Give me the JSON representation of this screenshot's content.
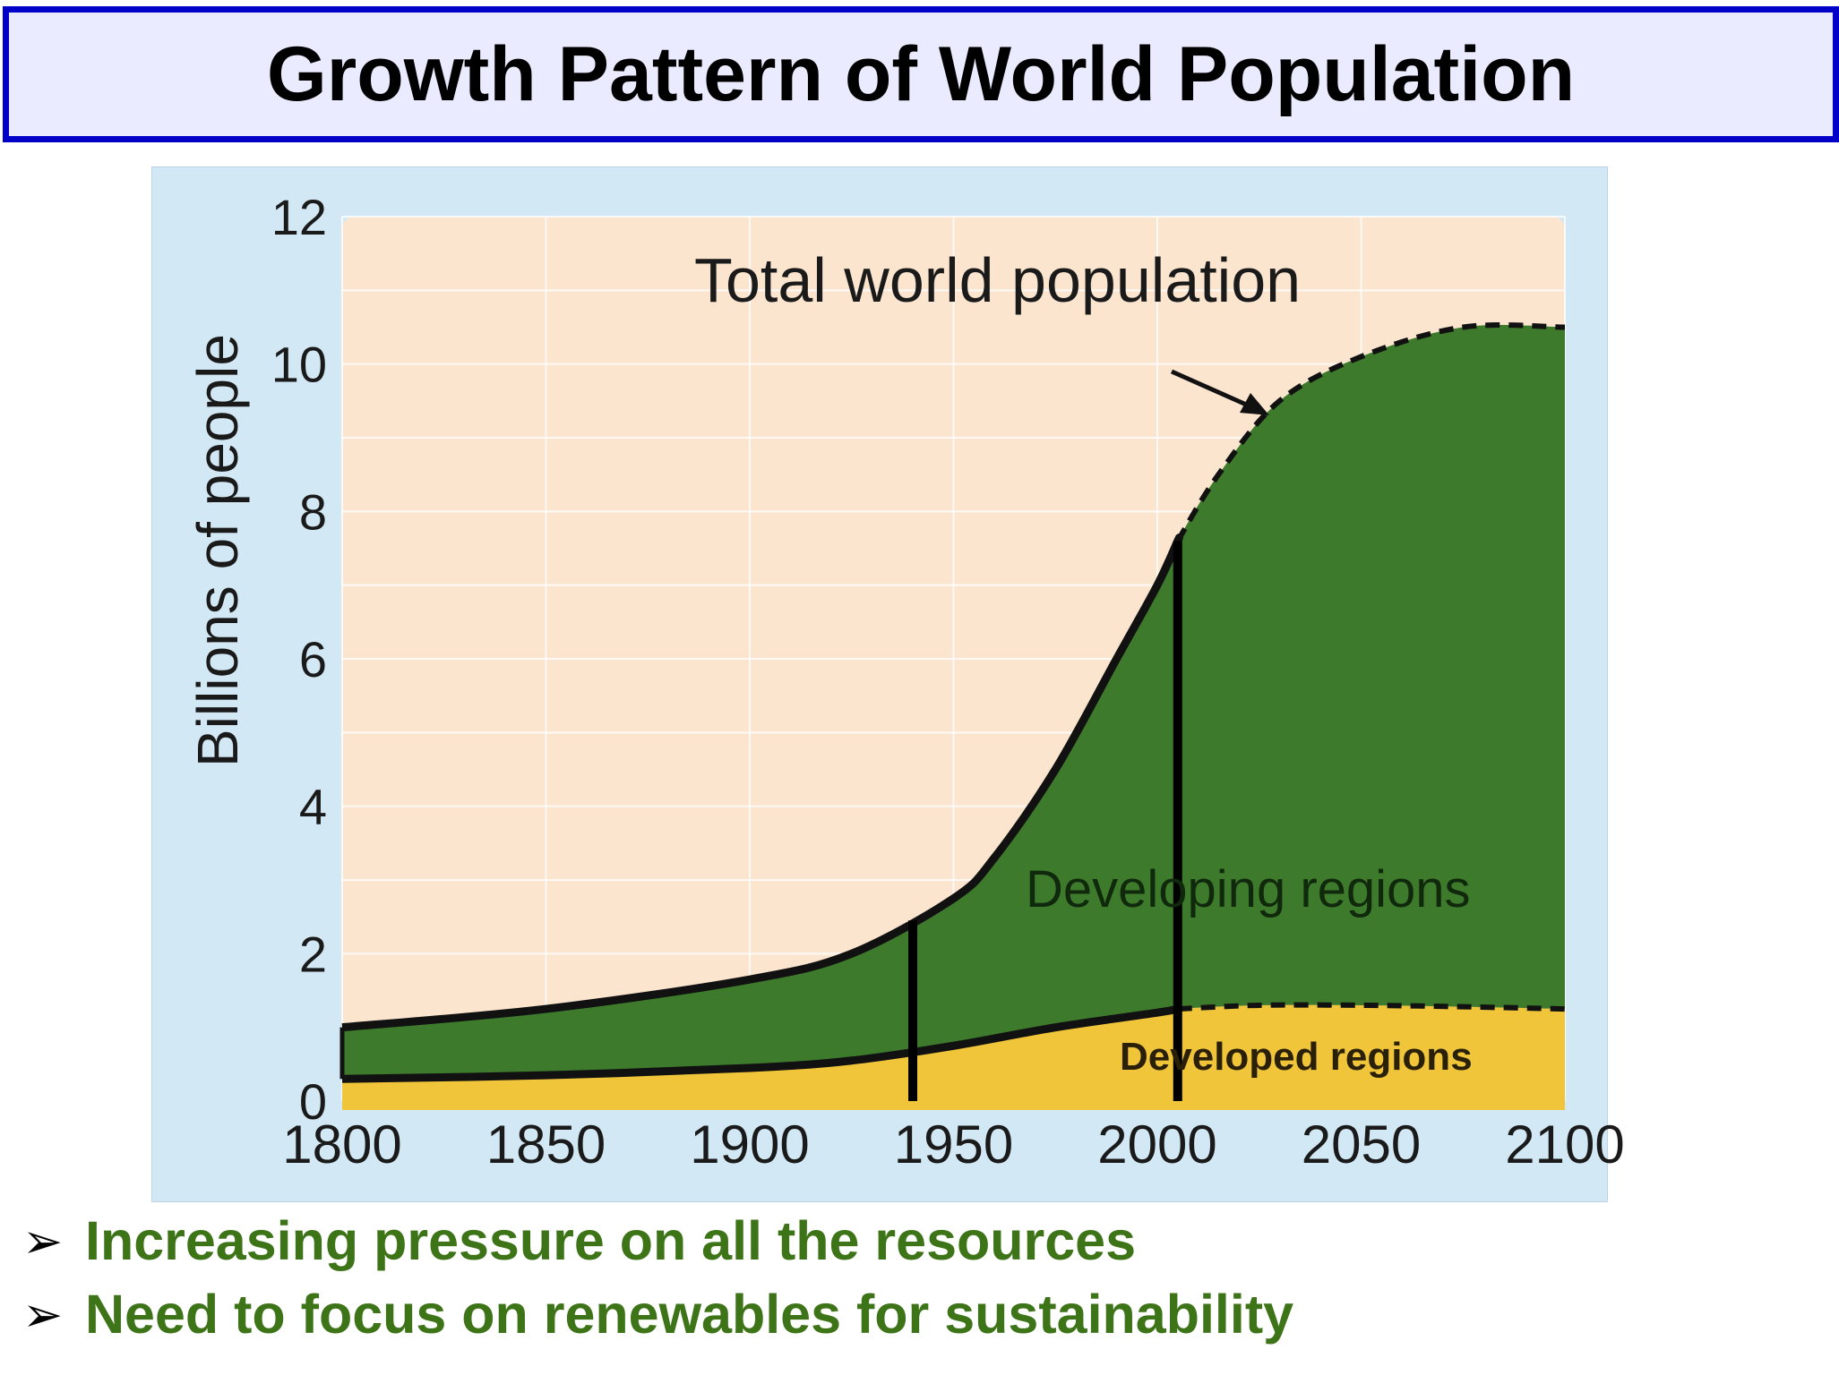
{
  "title": "Growth Pattern of World Population",
  "bullets": [
    "Increasing pressure on all the resources",
    "Need to focus on renewables for sustainability"
  ],
  "bullet_marker": "➢",
  "chart_data": {
    "type": "area",
    "title": "",
    "ylabel": "Billions of people",
    "xlabel": "",
    "xlim": [
      1800,
      2100
    ],
    "ylim": [
      0,
      12
    ],
    "x_ticks": [
      1800,
      1850,
      1900,
      1950,
      2000,
      2050,
      2100
    ],
    "y_ticks": [
      0,
      2,
      4,
      6,
      8,
      10,
      12
    ],
    "grid": true,
    "annotations": {
      "total": "Total world population",
      "developing": "Developing regions",
      "developed": "Developed regions"
    },
    "markers_x": [
      1940,
      2005
    ],
    "projection_start": 2005,
    "colors": {
      "developing": "#3e7a2c",
      "developed": "#f0c53a",
      "plot_background": "#fbe5cf",
      "panel_background": "#d2e8f4",
      "outline": "#111111"
    },
    "series": [
      {
        "name": "Developed regions",
        "x": [
          1800,
          1850,
          1900,
          1925,
          1950,
          1975,
          2000,
          2005,
          2025,
          2050,
          2075,
          2100
        ],
        "values": [
          0.3,
          0.35,
          0.45,
          0.55,
          0.75,
          1.0,
          1.2,
          1.25,
          1.3,
          1.3,
          1.28,
          1.25
        ]
      },
      {
        "name": "Total world population",
        "x": [
          1800,
          1850,
          1900,
          1925,
          1950,
          1960,
          1975,
          1990,
          2000,
          2005,
          2015,
          2030,
          2050,
          2075,
          2100
        ],
        "values": [
          1.0,
          1.25,
          1.65,
          2.0,
          2.75,
          3.3,
          4.5,
          6.0,
          7.0,
          7.6,
          8.5,
          9.5,
          10.1,
          10.5,
          10.5
        ]
      }
    ]
  }
}
